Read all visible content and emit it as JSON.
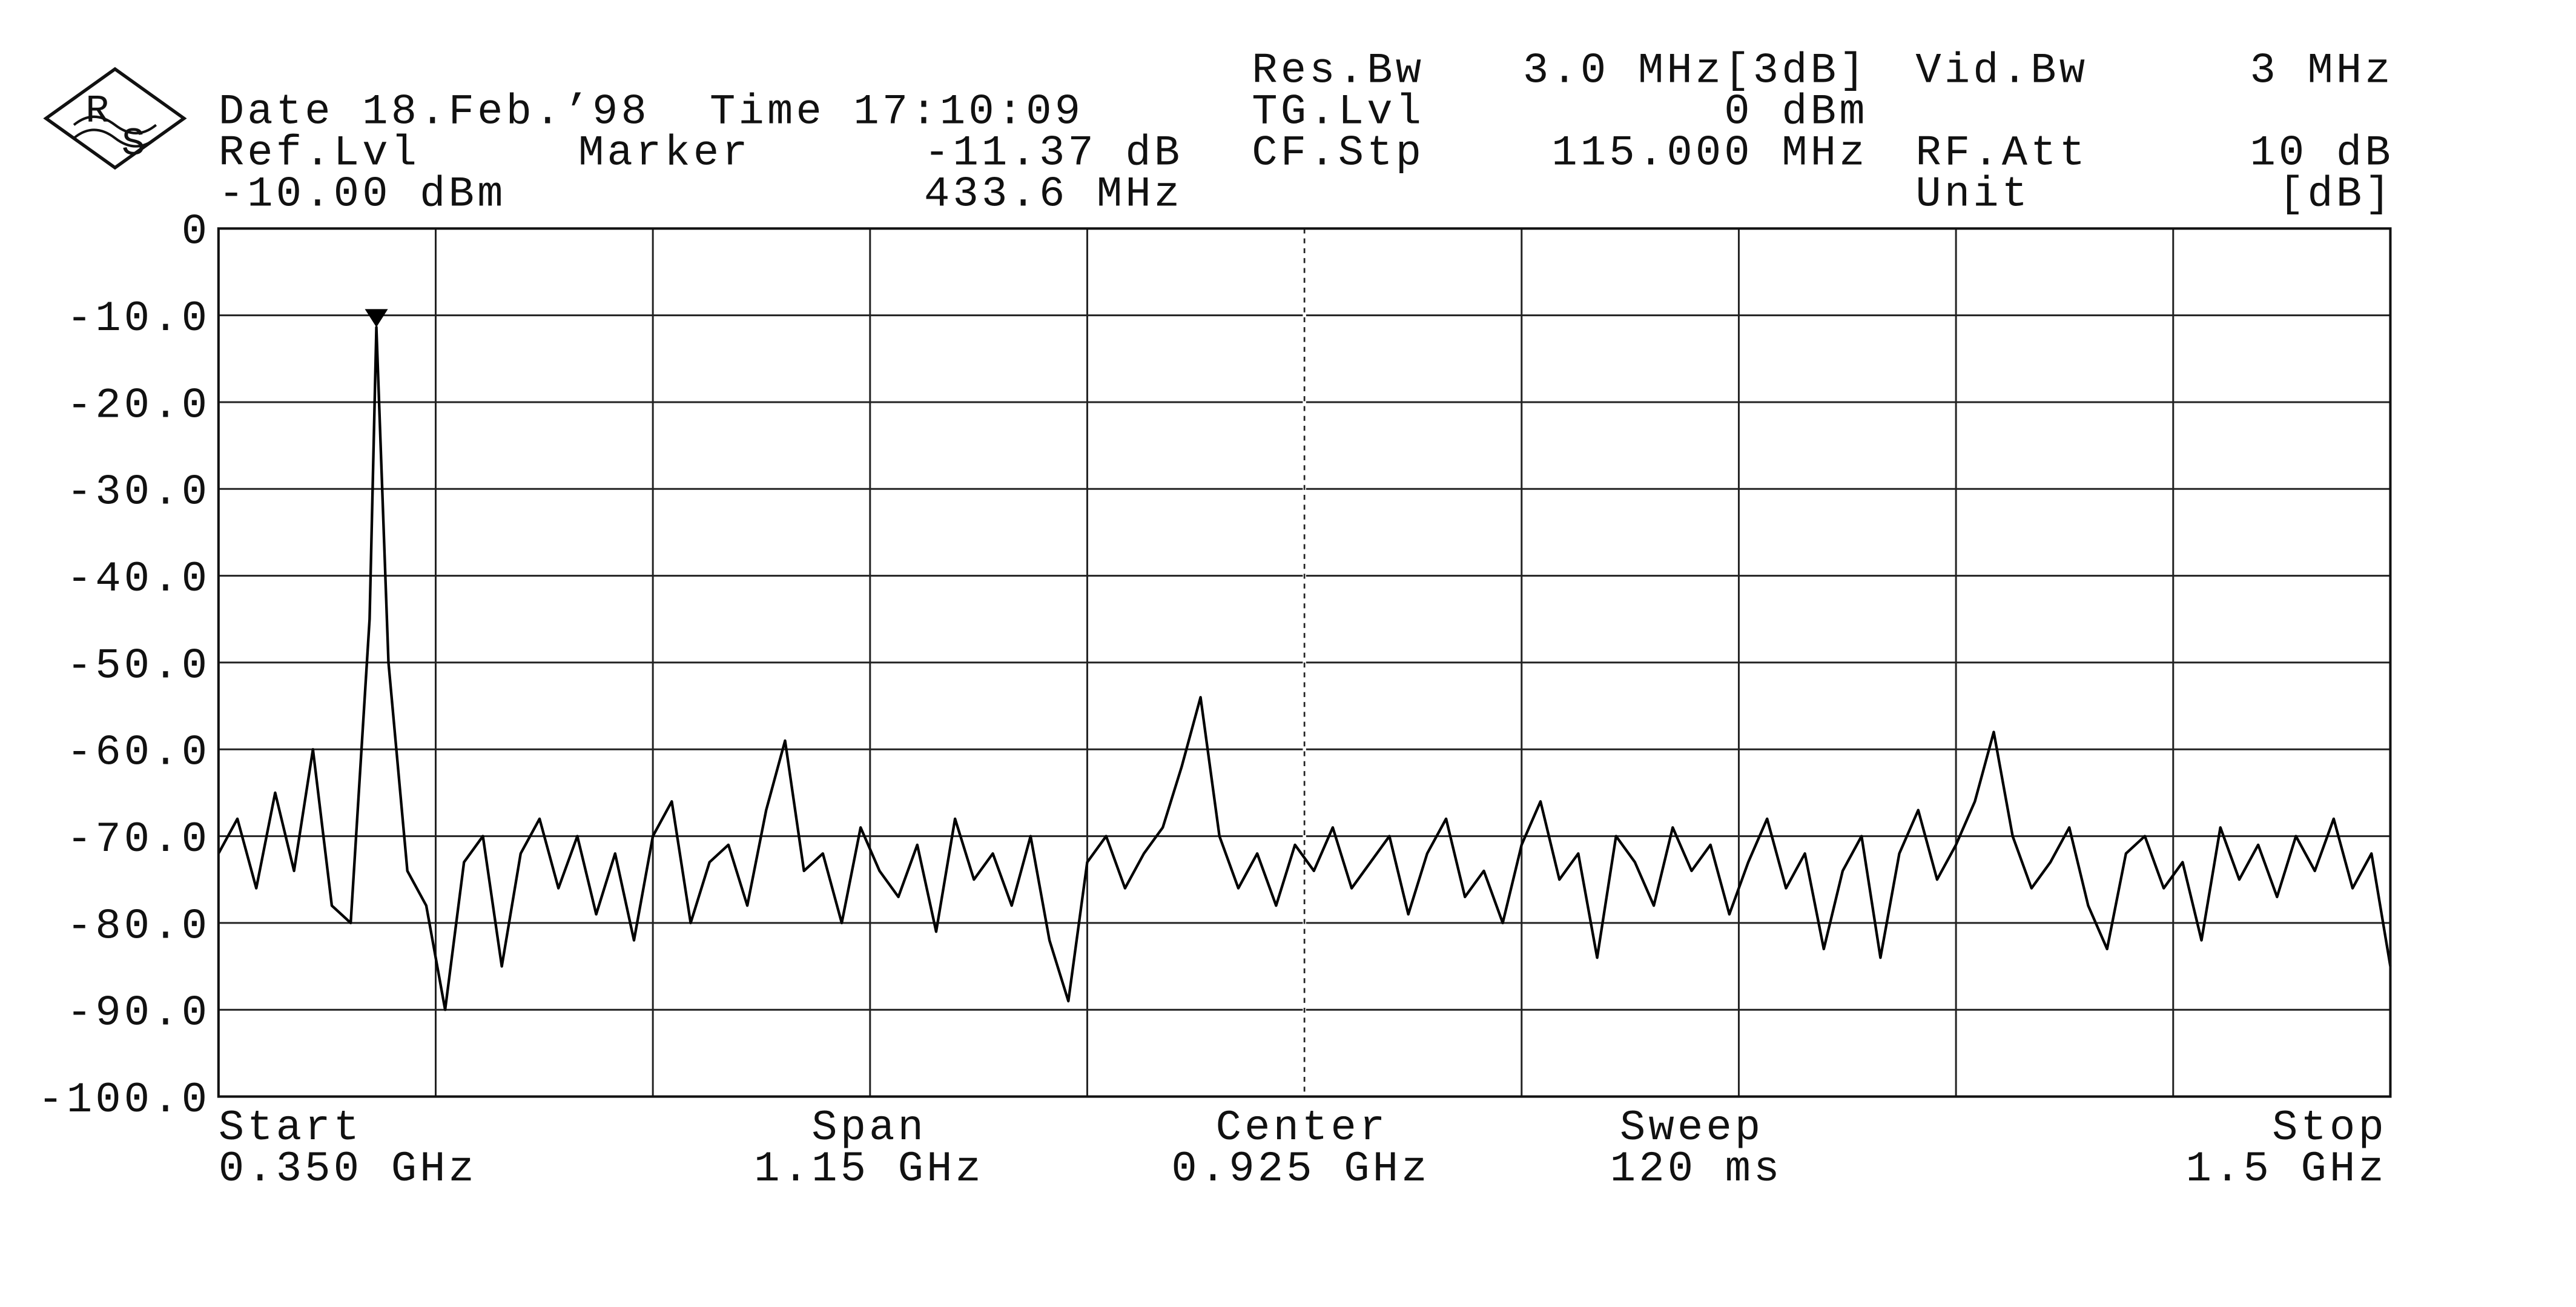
{
  "chart_data": {
    "type": "line",
    "logo": [
      "R",
      "S"
    ],
    "header": {
      "date": "Date 18.Feb.’98",
      "time": "Time 17:10:09",
      "ref_label": "Ref.Lvl",
      "ref_value": "-10.00 dBm",
      "marker_label": "Marker",
      "marker_level": "-11.37 dB",
      "marker_freq": "433.6 MHz",
      "res_bw_label": "Res.Bw",
      "res_bw_value": "3.0 MHz[3dB]",
      "tg_label": "TG.Lvl",
      "tg_value": "0 dBm",
      "cf_label": "CF.Stp",
      "cf_value": "115.000 MHz",
      "vid_bw_label": "Vid.Bw",
      "vid_bw_value": "3 MHz",
      "rf_label": "RF.Att",
      "rf_value": "10 dB",
      "unit_label": "Unit",
      "unit_value": "[dB]"
    },
    "footer": {
      "start_label": "Start",
      "start_value": "0.350 GHz",
      "span_label": "Span",
      "span_value": "1.15 GHz",
      "center_label": "Center",
      "center_value": "0.925 GHz",
      "sweep_label": "Sweep",
      "sweep_value": "120 ms",
      "stop_label": "Stop",
      "stop_value": "1.5 GHz"
    },
    "x": [
      0.35,
      0.36,
      0.37,
      0.38,
      0.39,
      0.4,
      0.41,
      0.42,
      0.43,
      0.4336,
      0.44,
      0.45,
      0.46,
      0.47,
      0.48,
      0.49,
      0.5,
      0.51,
      0.52,
      0.53,
      0.54,
      0.55,
      0.56,
      0.57,
      0.58,
      0.59,
      0.6,
      0.61,
      0.62,
      0.63,
      0.64,
      0.65,
      0.66,
      0.67,
      0.68,
      0.69,
      0.7,
      0.71,
      0.72,
      0.73,
      0.74,
      0.75,
      0.76,
      0.77,
      0.78,
      0.79,
      0.8,
      0.81,
      0.82,
      0.83,
      0.84,
      0.85,
      0.86,
      0.87,
      0.88,
      0.89,
      0.9,
      0.91,
      0.92,
      0.93,
      0.94,
      0.95,
      0.96,
      0.97,
      0.98,
      0.99,
      1.0,
      1.01,
      1.02,
      1.03,
      1.04,
      1.05,
      1.06,
      1.07,
      1.08,
      1.09,
      1.1,
      1.11,
      1.12,
      1.13,
      1.14,
      1.15,
      1.16,
      1.17,
      1.18,
      1.19,
      1.2,
      1.21,
      1.22,
      1.23,
      1.24,
      1.25,
      1.26,
      1.27,
      1.28,
      1.29,
      1.3,
      1.31,
      1.32,
      1.33,
      1.34,
      1.35,
      1.36,
      1.37,
      1.38,
      1.39,
      1.4,
      1.41,
      1.42,
      1.43,
      1.44,
      1.45,
      1.46,
      1.47,
      1.48,
      1.49,
      1.5
    ],
    "series": [
      {
        "color": "#000000",
        "values": [
          -72,
          -68,
          -76,
          -65,
          -74,
          -60,
          -78,
          -80,
          -45,
          -11.37,
          -50,
          -74,
          -78,
          -90,
          -73,
          -70,
          -85,
          -72,
          -68,
          -76,
          -70,
          -79,
          -72,
          -82,
          -70,
          -66,
          -80,
          -73,
          -71,
          -78,
          -67,
          -59,
          -74,
          -72,
          -80,
          -69,
          -74,
          -77,
          -71,
          -81,
          -68,
          -75,
          -72,
          -78,
          -70,
          -82,
          -89,
          -73,
          -70,
          -76,
          -72,
          -69,
          -62,
          -54,
          -70,
          -76,
          -72,
          -78,
          -71,
          -74,
          -69,
          -76,
          -73,
          -70,
          -79,
          -72,
          -68,
          -77,
          -74,
          -80,
          -71,
          -66,
          -75,
          -72,
          -84,
          -70,
          -73,
          -78,
          -69,
          -74,
          -71,
          -79,
          -73,
          -68,
          -76,
          -72,
          -83,
          -74,
          -70,
          -84,
          -72,
          -67,
          -75,
          -71,
          -66,
          -58,
          -70,
          -76,
          -73,
          -69,
          -78,
          -83,
          -72,
          -70,
          -76,
          -73,
          -82,
          -69,
          -75,
          -71,
          -77,
          -70,
          -74,
          -68,
          -76,
          -72,
          -85
        ]
      }
    ],
    "xlim": [
      0.35,
      1.5
    ],
    "xticks": [
      0.35,
      0.465,
      0.58,
      0.695,
      0.81,
      0.925,
      1.04,
      1.155,
      1.27,
      1.385,
      1.5
    ],
    "center_line": 0.925,
    "ylim": [
      -100,
      0
    ],
    "yticks": [
      0,
      {
        "value": -10,
        "label": "-10.0"
      },
      {
        "value": -20,
        "label": "-20.0"
      },
      {
        "value": -30,
        "label": "-30.0"
      },
      {
        "value": -40,
        "label": "-40.0"
      },
      {
        "value": -50,
        "label": "-50.0"
      },
      {
        "value": -60,
        "label": "-60.0"
      },
      {
        "value": -70,
        "label": "-70.0"
      },
      {
        "value": -80,
        "label": "-80.0"
      },
      {
        "value": -90,
        "label": "-90.0"
      },
      {
        "value": -100,
        "label": "-100.0"
      }
    ],
    "grid": true
  }
}
